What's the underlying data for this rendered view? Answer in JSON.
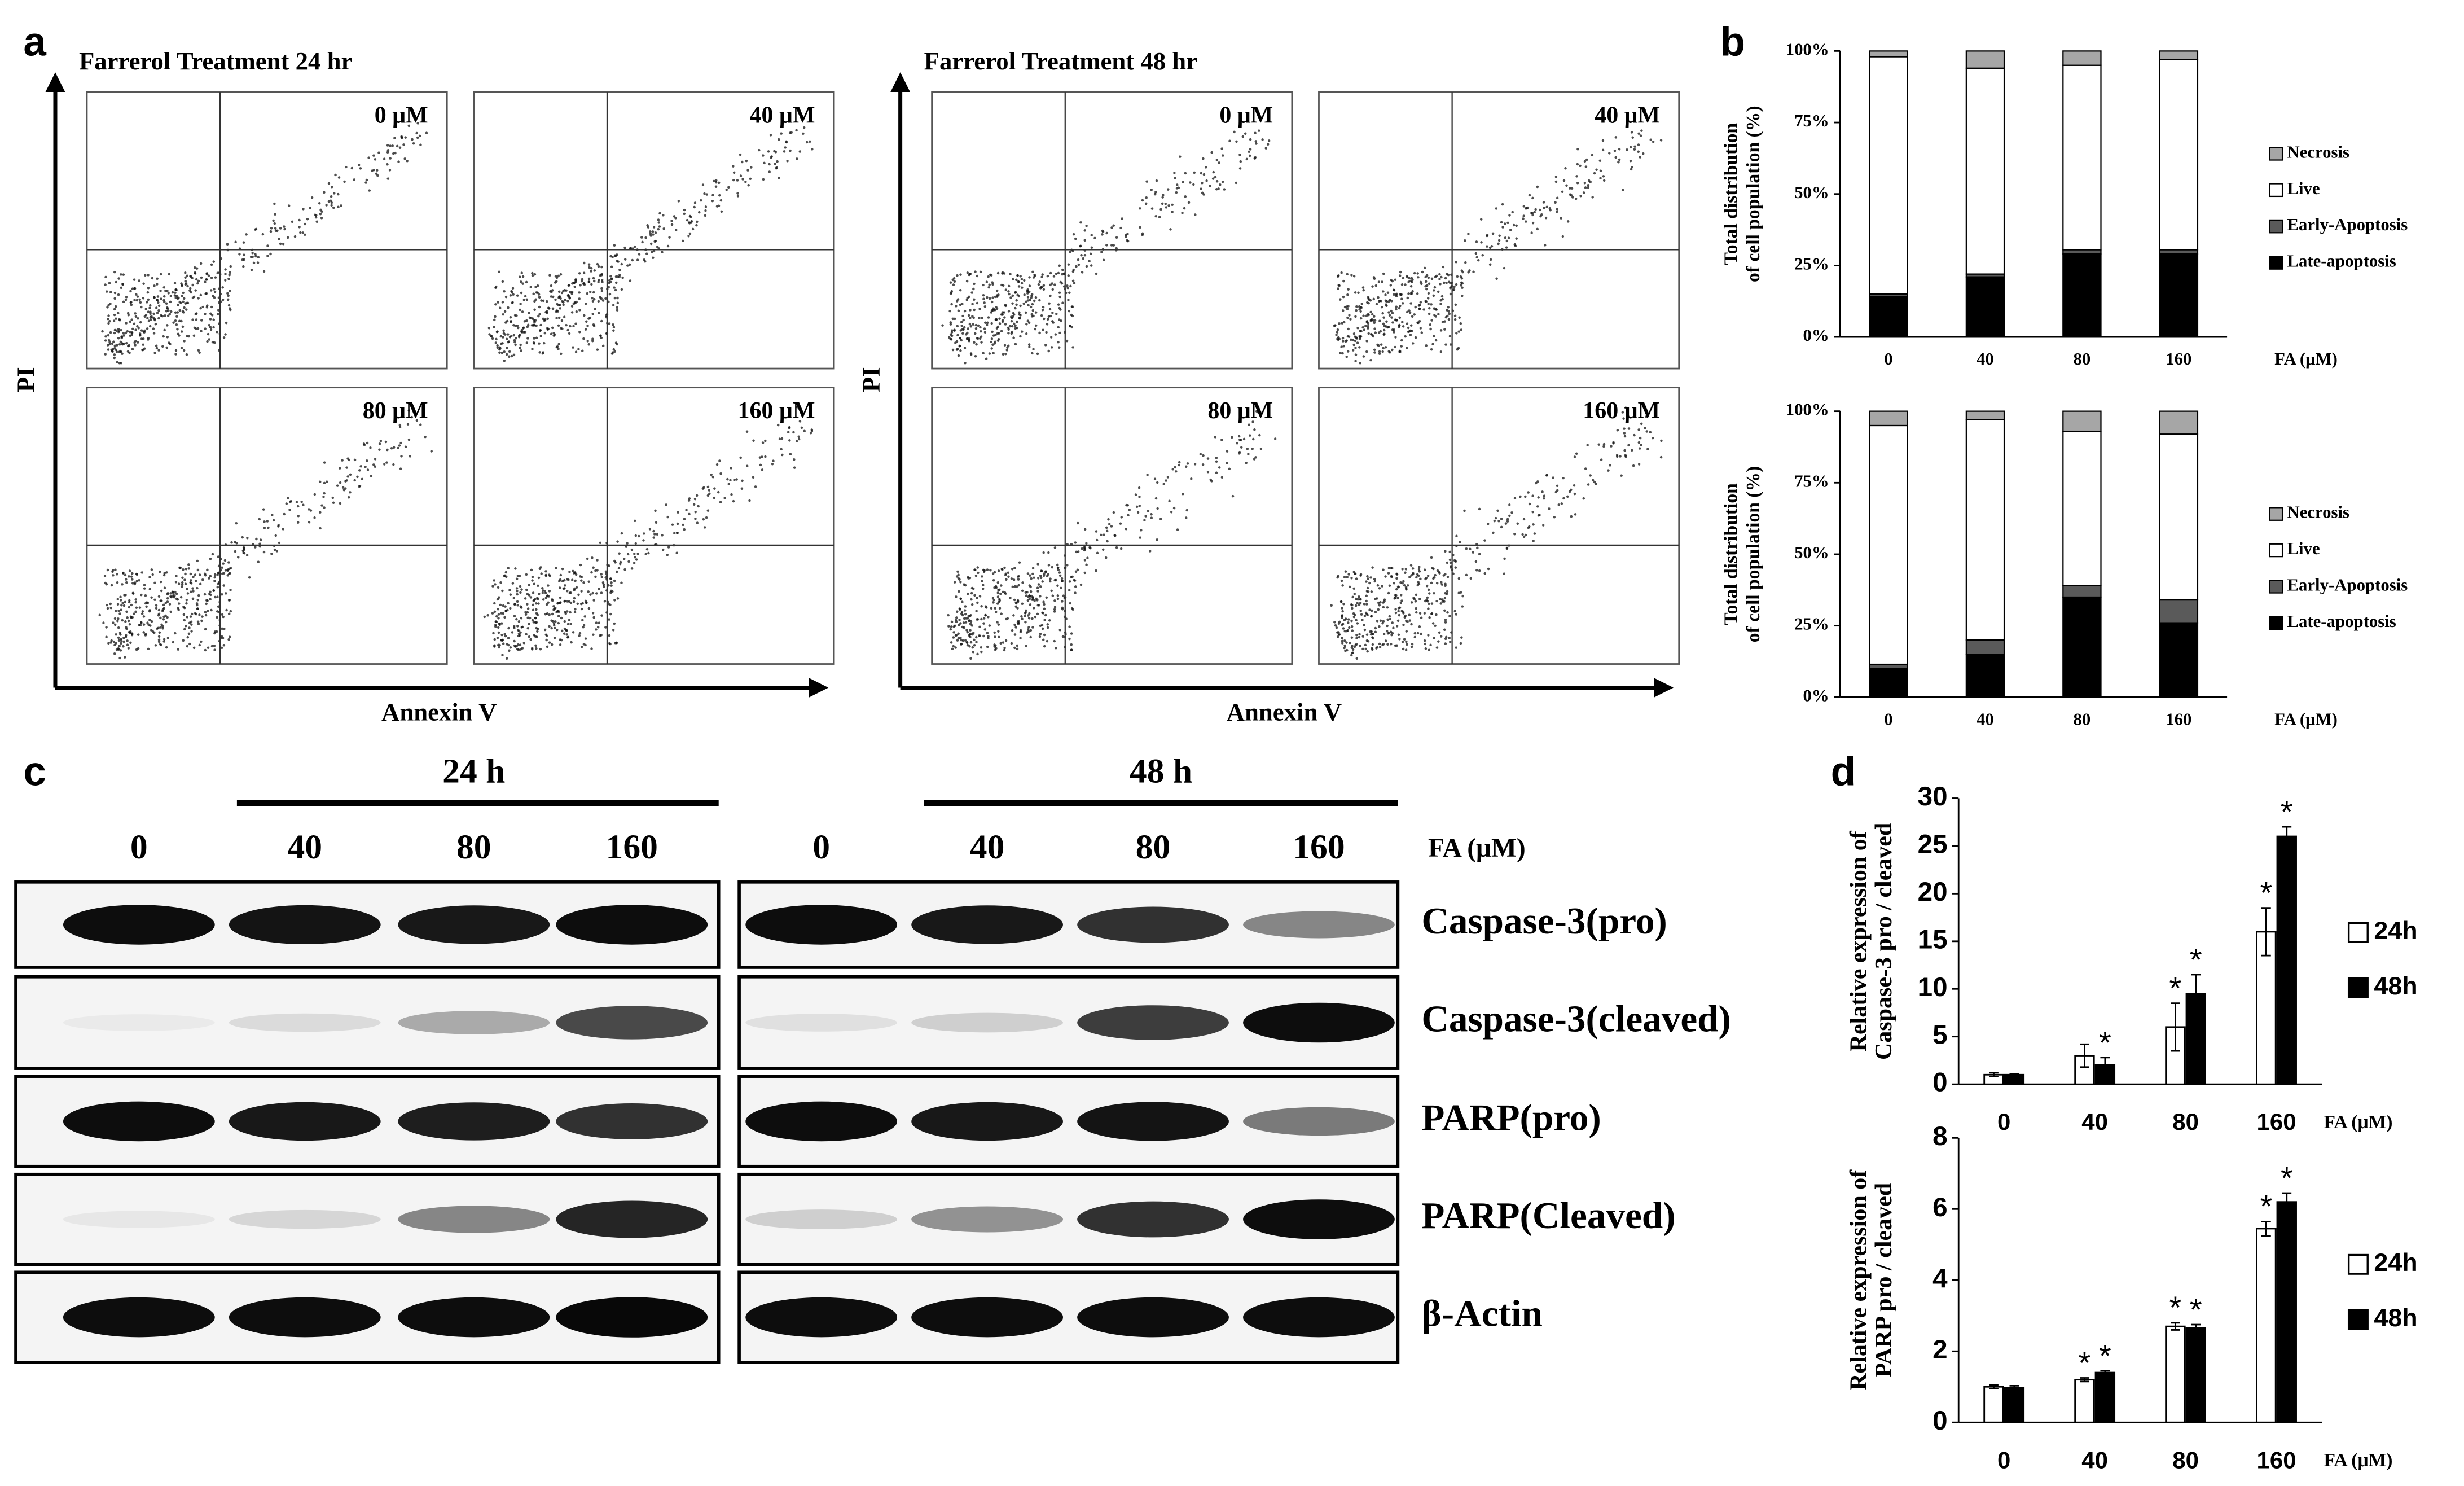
{
  "panel_letters": [
    "a",
    "b",
    "c",
    "d"
  ],
  "flow": {
    "y_label": "PI",
    "x_label": "Annexin V",
    "groups": [
      {
        "title": "Farrerol Treatment 24 hr",
        "doses": [
          "0 μM",
          "40 μM",
          "80 μM",
          "160 μM"
        ]
      },
      {
        "title": "Farrerol Treatment 48 hr",
        "doses": [
          "0 μM",
          "40 μM",
          "80 μM",
          "160 μM"
        ]
      }
    ]
  },
  "blot": {
    "times": [
      "24 h",
      "48 h"
    ],
    "doses": [
      "0",
      "40",
      "80",
      "160"
    ],
    "dose_label": "FA (μM)",
    "proteins": [
      "Caspase-3(pro)",
      "Caspase-3(cleaved)",
      "PARP(pro)",
      "PARP(Cleaved)",
      "β-Actin"
    ]
  },
  "chart_data": [
    {
      "type": "stacked_bar",
      "y_label": [
        "Total distribution",
        "of cell population (%)"
      ],
      "x_label": "FA (μM)",
      "categories": [
        "0",
        "40",
        "80",
        "160"
      ],
      "ylim": [
        0,
        100
      ],
      "yticks": [
        {
          "value": 0,
          "label": "0%"
        },
        {
          "value": 25,
          "label": "25%"
        },
        {
          "value": 50,
          "label": "50%"
        },
        {
          "value": 75,
          "label": "75%"
        },
        {
          "value": 100,
          "label": "100%"
        }
      ],
      "series": [
        {
          "name": "Late-apoptosis",
          "color": "#000000",
          "values": [
            14,
            21,
            29,
            29
          ]
        },
        {
          "name": "Early-Apoptosis",
          "color": "#5a5a5a",
          "values": [
            1,
            1,
            1.5,
            1.5
          ]
        },
        {
          "name": "Live",
          "color": "#ffffff",
          "values": [
            83,
            72,
            64.5,
            66.5
          ]
        },
        {
          "name": "Necrosis",
          "color": "#a6a6a6",
          "values": [
            2,
            6,
            5,
            3
          ]
        }
      ]
    },
    {
      "type": "stacked_bar",
      "y_label": [
        "Total distribution",
        "of cell population (%)"
      ],
      "x_label": "FA (μM)",
      "categories": [
        "0",
        "40",
        "80",
        "160"
      ],
      "ylim": [
        0,
        100
      ],
      "yticks": [
        {
          "value": 0,
          "label": "0%"
        },
        {
          "value": 25,
          "label": "25%"
        },
        {
          "value": 50,
          "label": "50%"
        },
        {
          "value": 75,
          "label": "75%"
        },
        {
          "value": 100,
          "label": "100%"
        }
      ],
      "series": [
        {
          "name": "Late-apoptosis",
          "color": "#000000",
          "values": [
            10,
            15,
            35,
            26
          ]
        },
        {
          "name": "Early-Apoptosis",
          "color": "#5a5a5a",
          "values": [
            1.5,
            5,
            4,
            8
          ]
        },
        {
          "name": "Live",
          "color": "#ffffff",
          "values": [
            83.5,
            77,
            54,
            58
          ]
        },
        {
          "name": "Necrosis",
          "color": "#a6a6a6",
          "values": [
            5,
            3,
            7,
            8
          ]
        }
      ]
    },
    {
      "type": "bar",
      "y_label": [
        "Relative expression of",
        "Caspase-3 pro / cleaved"
      ],
      "x_label": "FA (μM)",
      "categories": [
        "0",
        "40",
        "80",
        "160"
      ],
      "ylim": [
        0,
        30
      ],
      "yticks": [
        0,
        5,
        10,
        15,
        20,
        25,
        30
      ],
      "series": [
        {
          "name": "24h",
          "color": "#ffffff",
          "values": [
            1,
            3,
            6,
            16
          ],
          "errors": [
            0.2,
            1.2,
            2.5,
            2.5
          ],
          "significance": [
            null,
            null,
            "*",
            "*"
          ]
        },
        {
          "name": "48h",
          "color": "#000000",
          "values": [
            1,
            2,
            9.5,
            26
          ],
          "errors": [
            0.1,
            0.8,
            2,
            1
          ],
          "significance": [
            null,
            "*",
            "*",
            "*"
          ]
        }
      ]
    },
    {
      "type": "bar",
      "y_label": [
        "Relative expression of",
        "PARP pro / cleaved"
      ],
      "x_label": "FA (μM)",
      "categories": [
        "0",
        "40",
        "80",
        "160"
      ],
      "ylim": [
        0,
        8
      ],
      "yticks": [
        0,
        2,
        4,
        6,
        8
      ],
      "series": [
        {
          "name": "24h",
          "color": "#ffffff",
          "values": [
            1,
            1.2,
            2.7,
            5.45
          ],
          "errors": [
            0.05,
            0.05,
            0.1,
            0.2
          ],
          "significance": [
            null,
            "*",
            "*",
            "*"
          ]
        },
        {
          "name": "48h",
          "color": "#000000",
          "values": [
            0.98,
            1.4,
            2.65,
            6.2
          ],
          "errors": [
            0.05,
            0.05,
            0.1,
            0.25
          ],
          "significance": [
            null,
            "*",
            "*",
            "*"
          ]
        }
      ]
    }
  ]
}
